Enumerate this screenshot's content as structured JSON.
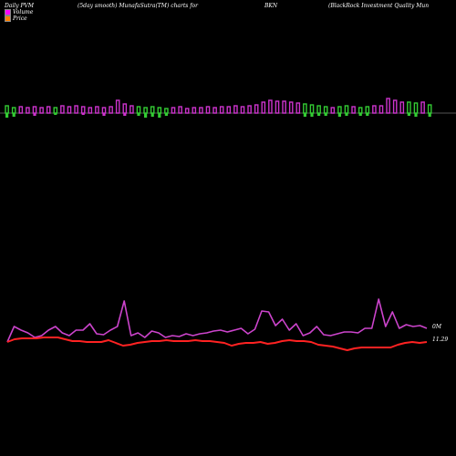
{
  "header": {
    "col1": "Daily PVM",
    "col2": "(5day smooth) MunafaSutra(TM) charts for",
    "col3": "BKN",
    "col4": "(BlackRock Investment Quality Mun"
  },
  "legend": [
    {
      "label": "Volume",
      "color": "#ff00ff"
    },
    {
      "label": "Price",
      "color": "#ff8000"
    }
  ],
  "labels": {
    "volume_value": "0M",
    "price_value": "11.29"
  },
  "colors": {
    "up": "#cc33cc",
    "down": "#33cc33",
    "volume_line": "#cc44cc",
    "price_line": "#ff2222",
    "baseline": "#aaaaaa"
  },
  "chart_data": {
    "type": "bar",
    "bars": {
      "values": [
        8,
        6,
        7,
        6,
        7,
        6,
        7,
        6,
        8,
        7,
        8,
        7,
        6,
        7,
        6,
        7,
        14,
        10,
        8,
        7,
        6,
        7,
        6,
        5,
        6,
        7,
        5,
        6,
        6,
        7,
        6,
        7,
        7,
        8,
        7,
        8,
        9,
        12,
        14,
        13,
        13,
        12,
        11,
        10,
        9,
        8,
        7,
        6,
        7,
        8,
        7,
        6,
        7,
        8,
        8,
        16,
        14,
        12,
        12,
        11,
        12,
        9
      ],
      "below": [
        5,
        4,
        0,
        0,
        3,
        0,
        0,
        2,
        0,
        0,
        0,
        2,
        0,
        0,
        3,
        0,
        0,
        3,
        0,
        3,
        5,
        4,
        5,
        3,
        0,
        0,
        0,
        0,
        0,
        0,
        0,
        0,
        0,
        0,
        0,
        0,
        0,
        0,
        0,
        0,
        0,
        0,
        0,
        4,
        4,
        3,
        3,
        0,
        4,
        3,
        0,
        3,
        3,
        0,
        0,
        0,
        0,
        0,
        3,
        4,
        0,
        4
      ],
      "direction": [
        "down",
        "down",
        "up",
        "up",
        "up",
        "up",
        "up",
        "down",
        "up",
        "up",
        "up",
        "up",
        "up",
        "up",
        "up",
        "up",
        "up",
        "up",
        "up",
        "down",
        "down",
        "down",
        "down",
        "down",
        "up",
        "up",
        "up",
        "up",
        "up",
        "up",
        "up",
        "up",
        "up",
        "up",
        "up",
        "up",
        "up",
        "up",
        "up",
        "up",
        "up",
        "up",
        "up",
        "down",
        "down",
        "down",
        "down",
        "up",
        "down",
        "down",
        "up",
        "down",
        "down",
        "up",
        "up",
        "up",
        "up",
        "up",
        "down",
        "down",
        "up",
        "down"
      ]
    },
    "volume_line": [
      375,
      358,
      362,
      365,
      370,
      368,
      362,
      358,
      365,
      368,
      362,
      362,
      355,
      366,
      367,
      362,
      358,
      330,
      368,
      365,
      370,
      363,
      365,
      370,
      368,
      369,
      366,
      368,
      366,
      365,
      363,
      362,
      364,
      362,
      360,
      366,
      361,
      341,
      342,
      357,
      350,
      362,
      355,
      368,
      365,
      358,
      367,
      368,
      366,
      364,
      364,
      365,
      360,
      360,
      328,
      358,
      342,
      360,
      356,
      358,
      357,
      360
    ],
    "price_line": [
      375,
      372,
      371,
      371,
      371,
      370,
      370,
      370,
      372,
      374,
      374,
      375,
      375,
      375,
      373,
      376,
      379,
      378,
      376,
      375,
      374,
      374,
      373,
      374,
      374,
      374,
      373,
      374,
      374,
      375,
      376,
      379,
      377,
      376,
      376,
      375,
      377,
      376,
      374,
      373,
      374,
      374,
      375,
      378,
      379,
      380,
      382,
      384,
      382,
      381,
      381,
      381,
      381,
      381,
      378,
      376,
      375,
      376,
      375
    ]
  }
}
